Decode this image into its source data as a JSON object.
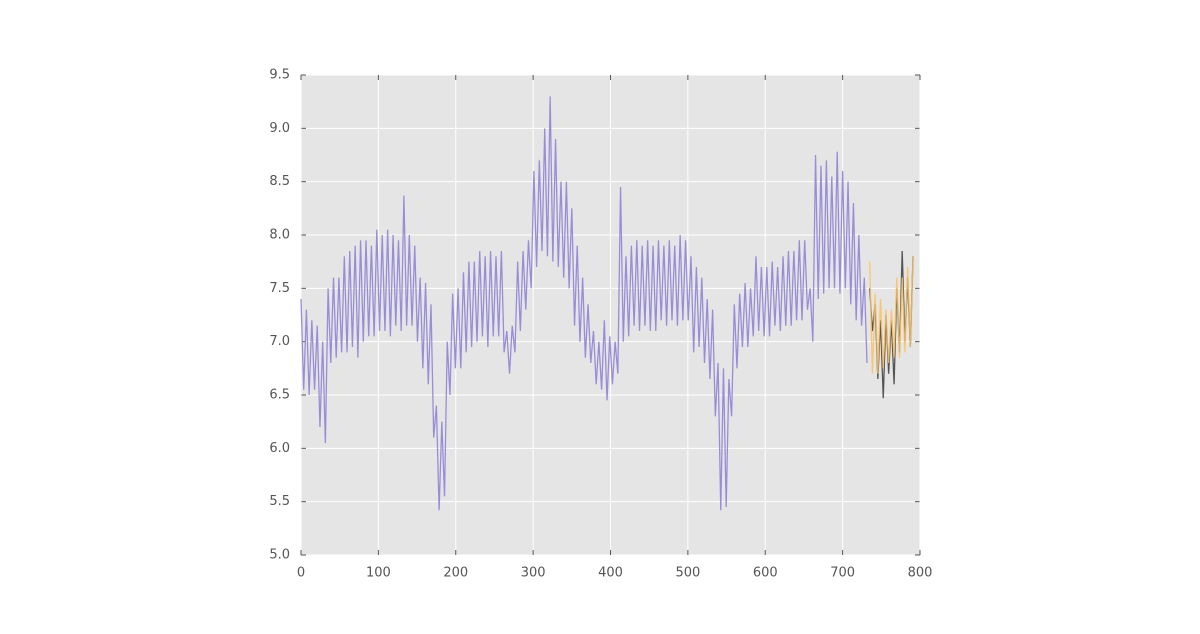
{
  "chart_data": {
    "type": "line",
    "xlim": [
      0,
      800
    ],
    "xticks": [
      0,
      100,
      200,
      300,
      400,
      500,
      600,
      700,
      800
    ],
    "ylim": [
      5,
      9.5
    ],
    "yticks": [
      {
        "value": 5,
        "label": "5.0"
      },
      5.5,
      {
        "value": 6,
        "label": "6.0"
      },
      6.5,
      {
        "value": 7,
        "label": "7.0"
      },
      7.5,
      {
        "value": 8,
        "label": "8.0"
      },
      8.5,
      {
        "value": 9,
        "label": "9.0"
      },
      9.5
    ],
    "grid": true,
    "series": [
      {
        "color": "#988ed5",
        "x": [
          0,
          3.5,
          7,
          10.5,
          14,
          17.5,
          21,
          24.5,
          28,
          31.5,
          35,
          38.5,
          42,
          45.5,
          49,
          52.5,
          56,
          59.5,
          63,
          66.5,
          70,
          73.5,
          77,
          80.5,
          84,
          87.5,
          91,
          94.5,
          98,
          101.5,
          105,
          108.5,
          112,
          115.5,
          119,
          122.5,
          126,
          129.5,
          133,
          136.5,
          140,
          143.5,
          147,
          150.5,
          154,
          157.5,
          161,
          164.5,
          168,
          171.5,
          175,
          178.5,
          182,
          185.5,
          189,
          192.5,
          196,
          199.5,
          203,
          206.5,
          210,
          213.5,
          217,
          220.5,
          224,
          227.5,
          231,
          234.5,
          238,
          241.5,
          245,
          248.5,
          252,
          255.5,
          259,
          262.5,
          266,
          269.5,
          273,
          276.5,
          280,
          283.5,
          287,
          290.5,
          294,
          297.5,
          301,
          304.5,
          308,
          311.5,
          315,
          318.5,
          322,
          325.5,
          329,
          332.5,
          336,
          339.5,
          343,
          346.5,
          350,
          353.5,
          357,
          360.5,
          364,
          367.5,
          371,
          374.5,
          378,
          381.5,
          385,
          388.5,
          392,
          395.5,
          399,
          402.5,
          406,
          409.5,
          413,
          416.5,
          420,
          423.5,
          427,
          430.5,
          434,
          437.5,
          441,
          444.5,
          448,
          451.5,
          455,
          458.5,
          462,
          465.5,
          469,
          472.5,
          476,
          479.5,
          483,
          486.5,
          490,
          493.5,
          497,
          500.5,
          504,
          507.5,
          511,
          514.5,
          518,
          521.5,
          525,
          528.5,
          532,
          535.5,
          539,
          542.5,
          546,
          549.5,
          553,
          556.5,
          560,
          563.5,
          567,
          570.5,
          574,
          577.5,
          581,
          584.5,
          588,
          591.5,
          595,
          598.5,
          602,
          605.5,
          609,
          612.5,
          616,
          619.5,
          623,
          626.5,
          630,
          633.5,
          637,
          640.5,
          644,
          647.5,
          651,
          654.5,
          658,
          661.5,
          665,
          668.5,
          672,
          675.5,
          679,
          682.5,
          686,
          689.5,
          693,
          696.5,
          700,
          703.5,
          707,
          710.5,
          714,
          717.5,
          721,
          724.5,
          728,
          731.5
        ],
        "values": [
          7.4,
          6.55,
          7.3,
          6.5,
          7.2,
          6.55,
          7.15,
          6.2,
          7.0,
          6.05,
          7.5,
          6.8,
          7.6,
          6.85,
          7.6,
          6.9,
          7.8,
          6.9,
          7.85,
          6.95,
          7.9,
          6.85,
          7.95,
          7.0,
          7.95,
          7.05,
          7.9,
          7.05,
          8.05,
          7.1,
          8.0,
          7.1,
          8.05,
          7.05,
          8.0,
          7.15,
          7.95,
          7.1,
          8.37,
          7.15,
          8.0,
          7.15,
          7.9,
          7.0,
          7.6,
          6.75,
          7.55,
          6.6,
          7.35,
          6.1,
          6.4,
          5.42,
          6.25,
          5.55,
          7.0,
          6.5,
          7.45,
          6.75,
          7.5,
          6.75,
          7.65,
          6.9,
          7.75,
          6.95,
          7.75,
          7.0,
          7.85,
          7.05,
          7.8,
          6.95,
          7.85,
          7.05,
          7.8,
          7.05,
          7.85,
          6.9,
          7.1,
          6.7,
          7.15,
          6.9,
          7.75,
          7.1,
          7.85,
          7.3,
          7.95,
          7.5,
          8.6,
          7.7,
          8.7,
          7.85,
          9.0,
          7.8,
          9.3,
          7.75,
          8.9,
          7.7,
          8.5,
          7.6,
          8.5,
          7.5,
          8.25,
          7.15,
          7.9,
          7.0,
          7.6,
          6.85,
          7.35,
          6.8,
          7.1,
          6.6,
          7.0,
          6.55,
          7.2,
          6.45,
          7.05,
          6.6,
          7.0,
          6.7,
          8.45,
          7.0,
          7.8,
          7.05,
          7.9,
          7.15,
          7.95,
          7.1,
          7.9,
          7.15,
          7.95,
          7.1,
          7.9,
          7.1,
          7.95,
          7.2,
          7.9,
          7.15,
          7.95,
          7.2,
          7.9,
          7.15,
          8.0,
          7.2,
          7.95,
          7.2,
          7.8,
          6.9,
          7.7,
          6.95,
          7.6,
          6.8,
          7.4,
          6.65,
          7.3,
          6.3,
          6.8,
          5.42,
          6.75,
          5.45,
          6.65,
          6.3,
          7.35,
          6.75,
          7.45,
          6.95,
          7.55,
          6.95,
          7.5,
          7.05,
          7.8,
          7.1,
          7.7,
          7.05,
          7.7,
          7.05,
          7.75,
          7.15,
          7.7,
          7.1,
          7.8,
          7.15,
          7.85,
          7.15,
          7.85,
          7.2,
          7.95,
          7.2,
          7.95,
          7.3,
          7.5,
          7.0,
          8.75,
          7.4,
          8.65,
          7.45,
          8.7,
          7.5,
          8.55,
          7.5,
          8.78,
          7.45,
          8.6,
          7.5,
          8.5,
          7.35,
          8.3,
          7.2,
          8.0,
          7.15,
          7.6,
          6.8
        ]
      },
      {
        "color": "#555555",
        "x": [
          735,
          738.5,
          742,
          745.5,
          749,
          752.5,
          756,
          759.5,
          763,
          766.5,
          770,
          773.5,
          777,
          780.5,
          784,
          787.5,
          791
        ],
        "values": [
          7.5,
          7.1,
          7.35,
          6.65,
          7.2,
          6.47,
          7.25,
          6.7,
          7.2,
          6.6,
          7.5,
          6.9,
          7.85,
          7.0,
          7.6,
          6.95,
          7.8
        ]
      },
      {
        "color": "#fbc15e",
        "x": [
          735,
          738.5,
          742,
          745.5,
          749,
          752.5,
          756,
          759.5,
          763,
          766.5,
          770,
          773.5,
          777,
          780.5,
          784,
          787.5,
          791
        ],
        "values": [
          7.75,
          6.7,
          7.45,
          6.7,
          7.4,
          6.75,
          7.3,
          6.8,
          7.3,
          6.85,
          7.6,
          6.85,
          7.6,
          6.9,
          7.7,
          6.95,
          7.8
        ]
      }
    ]
  }
}
